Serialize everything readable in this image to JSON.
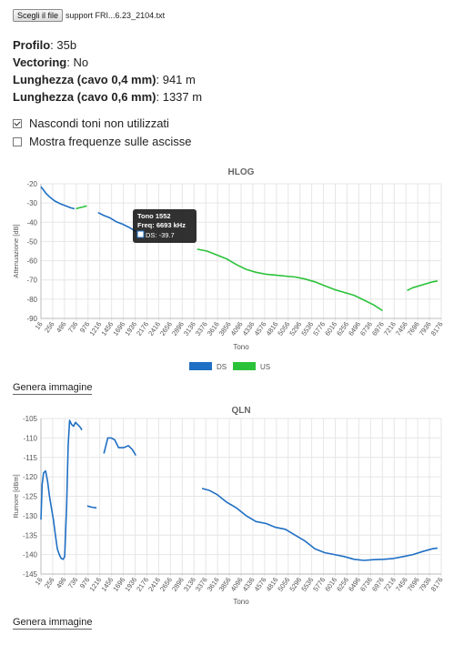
{
  "file": {
    "button_label": "Scegli il file",
    "file_name": "support FRI...6.23_2104.txt"
  },
  "info": {
    "profile_label": "Profilo",
    "profile_value": "35b",
    "vectoring_label": "Vectoring",
    "vectoring_value": "No",
    "len04_label": "Lunghezza (cavo 0,4 mm)",
    "len04_value": "941 m",
    "len06_label": "Lunghezza (cavo 0,6 mm)",
    "len06_value": "1337 m"
  },
  "options": {
    "hide_unused": {
      "label": "Nascondi toni non utilizzati",
      "checked": true
    },
    "show_freq": {
      "label": "Mostra frequenze sulle ascisse",
      "checked": false
    }
  },
  "generate_label": "Genera immagine",
  "colors": {
    "ds": "#1f6fc4",
    "us": "#2bc23a",
    "grid": "#e6e6e6"
  },
  "tooltip": {
    "title": "Tono 1552",
    "freq": "Freq: 6693 kHz",
    "value": "DS: -39.7",
    "tone": 1552,
    "db": -39.7
  },
  "chart_data": [
    {
      "type": "line",
      "title": "HLOG",
      "xlabel": "Tono",
      "ylabel": "Attenuazione [dB]",
      "ylim": [
        -90,
        -20
      ],
      "yticks": [
        -20,
        -30,
        -40,
        -50,
        -60,
        -70,
        -80,
        -90
      ],
      "xticks": [
        16,
        256,
        496,
        736,
        976,
        1216,
        1456,
        1696,
        1936,
        2176,
        2416,
        2656,
        2896,
        3136,
        3376,
        3616,
        3856,
        4096,
        4336,
        4576,
        4816,
        5056,
        5296,
        5536,
        5776,
        6016,
        6256,
        6496,
        6736,
        6976,
        7216,
        7456,
        7696,
        7936,
        8176
      ],
      "legend": [
        "DS",
        "US"
      ],
      "legend_position": "bottom",
      "series": [
        {
          "name": "DS",
          "color": "#1f6fc4",
          "segments": [
            [
              [
                16,
                -21.5
              ],
              [
                60,
                -23
              ],
              [
                120,
                -25
              ],
              [
                200,
                -27
              ],
              [
                300,
                -29
              ],
              [
                420,
                -30.5
              ],
              [
                520,
                -31.5
              ],
              [
                620,
                -32.5
              ],
              [
                700,
                -33
              ]
            ],
            [
              [
                1180,
                -35
              ],
              [
                1300,
                -36.5
              ],
              [
                1420,
                -37.7
              ],
              [
                1552,
                -39.7
              ],
              [
                1680,
                -41
              ],
              [
                1800,
                -42.5
              ],
              [
                1900,
                -44
              ],
              [
                1960,
                -45
              ]
            ]
          ]
        },
        {
          "name": "US",
          "color": "#2bc23a",
          "segments": [
            [
              [
                730,
                -33
              ],
              [
                800,
                -32.5
              ],
              [
                880,
                -32
              ],
              [
                950,
                -31.5
              ]
            ],
            [
              [
                3200,
                -54
              ],
              [
                3400,
                -55
              ],
              [
                3600,
                -57
              ],
              [
                3800,
                -59
              ],
              [
                4000,
                -62
              ],
              [
                4200,
                -64.5
              ],
              [
                4400,
                -66
              ],
              [
                4600,
                -67
              ],
              [
                4800,
                -67.5
              ],
              [
                5000,
                -68
              ],
              [
                5200,
                -68.5
              ],
              [
                5400,
                -69.5
              ],
              [
                5600,
                -71
              ],
              [
                5800,
                -73
              ],
              [
                6000,
                -75
              ],
              [
                6200,
                -76.5
              ],
              [
                6400,
                -78
              ],
              [
                6600,
                -80.5
              ],
              [
                6800,
                -83
              ],
              [
                6980,
                -86
              ]
            ],
            [
              [
                7480,
                -75.5
              ],
              [
                7600,
                -74
              ],
              [
                7800,
                -72.5
              ],
              [
                8000,
                -71
              ],
              [
                8100,
                -70.5
              ]
            ]
          ]
        }
      ]
    },
    {
      "type": "line",
      "title": "QLN",
      "xlabel": "Tono",
      "ylabel": "Rumore [dBm]",
      "ylim": [
        -145,
        -105
      ],
      "yticks": [
        -105,
        -110,
        -115,
        -120,
        -125,
        -130,
        -135,
        -140,
        -145
      ],
      "xticks": [
        16,
        256,
        496,
        736,
        976,
        1216,
        1456,
        1696,
        1936,
        2176,
        2416,
        2656,
        2896,
        3136,
        3376,
        3616,
        3856,
        4096,
        4336,
        4576,
        4816,
        5056,
        5296,
        5536,
        5776,
        6016,
        6256,
        6496,
        6736,
        6976,
        7216,
        7456,
        7696,
        7936,
        8176
      ],
      "series": [
        {
          "name": "",
          "color": "#1f6fc4",
          "segments": [
            [
              [
                16,
                -131
              ],
              [
                40,
                -122
              ],
              [
                70,
                -119
              ],
              [
                110,
                -118.5
              ],
              [
                150,
                -121
              ],
              [
                190,
                -125
              ],
              [
                230,
                -128
              ],
              [
                270,
                -131
              ],
              [
                310,
                -135
              ],
              [
                350,
                -138.5
              ],
              [
                390,
                -140
              ],
              [
                430,
                -141
              ],
              [
                470,
                -141.2
              ],
              [
                500,
                -140.5
              ],
              [
                540,
                -127
              ],
              [
                570,
                -112
              ],
              [
                600,
                -105.5
              ],
              [
                640,
                -106.5
              ],
              [
                680,
                -107
              ],
              [
                720,
                -106
              ],
              [
                760,
                -106.5
              ],
              [
                800,
                -107
              ],
              [
                830,
                -107.5
              ],
              [
                850,
                -108
              ]
            ],
            [
              [
                960,
                -127.5
              ],
              [
                1050,
                -127.8
              ],
              [
                1150,
                -128
              ]
            ],
            [
              [
                1300,
                -114
              ],
              [
                1380,
                -110
              ],
              [
                1450,
                -110
              ],
              [
                1520,
                -110.5
              ],
              [
                1600,
                -112.5
              ],
              [
                1700,
                -112.5
              ],
              [
                1800,
                -112
              ],
              [
                1880,
                -113
              ],
              [
                1950,
                -114.5
              ]
            ],
            [
              [
                3300,
                -123
              ],
              [
                3450,
                -123.5
              ],
              [
                3600,
                -124.5
              ],
              [
                3800,
                -126.5
              ],
              [
                4000,
                -128
              ],
              [
                4200,
                -130
              ],
              [
                4400,
                -131.5
              ],
              [
                4600,
                -132
              ],
              [
                4800,
                -133
              ],
              [
                5000,
                -133.5
              ],
              [
                5200,
                -135
              ],
              [
                5400,
                -136.5
              ],
              [
                5600,
                -138.5
              ],
              [
                5800,
                -139.5
              ],
              [
                6000,
                -140
              ],
              [
                6200,
                -140.5
              ],
              [
                6400,
                -141.2
              ],
              [
                6600,
                -141.5
              ],
              [
                6800,
                -141.3
              ],
              [
                7000,
                -141.2
              ],
              [
                7200,
                -141
              ],
              [
                7400,
                -140.5
              ],
              [
                7600,
                -140
              ],
              [
                7800,
                -139.2
              ],
              [
                8000,
                -138.5
              ],
              [
                8100,
                -138.3
              ]
            ]
          ]
        }
      ]
    }
  ]
}
